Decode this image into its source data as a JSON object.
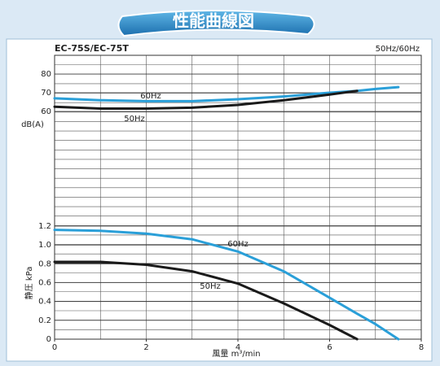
{
  "header": {
    "title": "性能曲線図",
    "model": "EC-75S/EC-75T",
    "frequency": "50Hz/60Hz"
  },
  "chart_data": [
    {
      "type": "line",
      "ylabel": "dB(A)",
      "xlim": [
        0,
        8
      ],
      "ylim": [
        50,
        90
      ],
      "yticks": [
        60,
        70,
        80
      ],
      "x": [
        0,
        1,
        2,
        3,
        4,
        5,
        6,
        6.6,
        7,
        7.5
      ],
      "series": [
        {
          "name": "60Hz",
          "color": "#2a9fd8",
          "values": [
            67,
            66,
            65.5,
            65.5,
            66.5,
            68,
            70,
            71,
            72,
            73
          ]
        },
        {
          "name": "50Hz",
          "color": "#1a1a1a",
          "values": [
            62.5,
            61.5,
            61.5,
            62,
            63.5,
            66,
            69,
            71,
            null,
            null
          ]
        }
      ]
    },
    {
      "type": "line",
      "ylabel": "静圧 kPa",
      "xlabel": "風量 m³/min",
      "xlim": [
        0,
        8
      ],
      "ylim": [
        0,
        1.2
      ],
      "xticks": [
        0,
        2,
        4,
        6,
        8
      ],
      "yticks": [
        0,
        0.2,
        0.4,
        0.6,
        0.8,
        {
          "value": 1,
          "label": "1.0"
        },
        1.2
      ],
      "x": [
        0,
        1,
        2,
        3,
        4,
        5,
        6,
        6.6,
        7,
        7.5
      ],
      "series": [
        {
          "name": "60Hz",
          "color": "#2a9fd8",
          "values": [
            1.16,
            1.15,
            1.12,
            1.06,
            0.93,
            0.72,
            0.44,
            0.27,
            0.16,
            0
          ]
        },
        {
          "name": "50Hz",
          "color": "#1a1a1a",
          "values": [
            0.82,
            0.82,
            0.79,
            0.72,
            0.59,
            0.38,
            0.15,
            0,
            null,
            null
          ]
        }
      ]
    }
  ]
}
